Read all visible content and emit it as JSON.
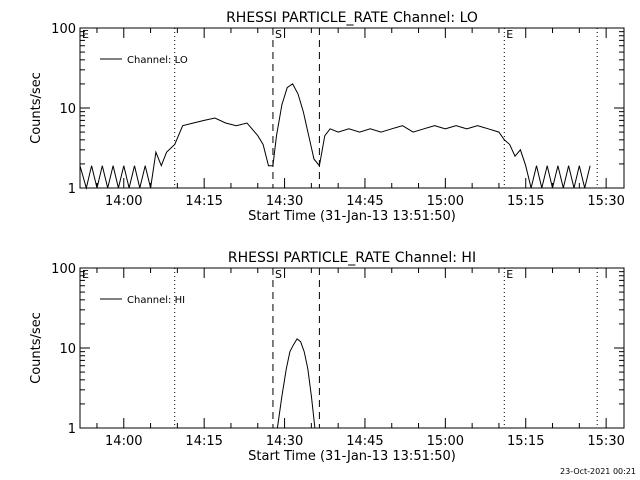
{
  "timestamp": "23-Oct-2021 00:21",
  "chart_data": [
    {
      "type": "line",
      "title": "RHESSI PARTICLE_RATE Channel: LO",
      "xlabel": "Start Time (31-Jan-13 13:51:50)",
      "ylabel": "Counts/sec",
      "y_scale": "log",
      "ylim": [
        1,
        100
      ],
      "y_ticks": [
        "1",
        "10",
        "100"
      ],
      "xlim": [
        "13:51:50",
        "15:33:20"
      ],
      "x_ticks": [
        "14:00",
        "14:15",
        "14:30",
        "14:45",
        "15:00",
        "15:15",
        "15:30"
      ],
      "legend": {
        "position": "top-left",
        "entries": [
          "Channel: LO"
        ]
      },
      "markers": [
        {
          "label": "E",
          "time": "13:51:50",
          "style": "dotted"
        },
        {
          "label": "",
          "time": "14:09:30",
          "style": "dotted"
        },
        {
          "label": "S",
          "time": "14:27:50",
          "style": "dashed"
        },
        {
          "label": "",
          "time": "14:36:30",
          "style": "dashed"
        },
        {
          "label": "E",
          "time": "15:11:00",
          "style": "dotted"
        },
        {
          "label": "",
          "time": "15:28:20",
          "style": "dotted"
        }
      ],
      "series": [
        {
          "name": "Channel: LO",
          "x": [
            "13:51:50",
            "13:53:00",
            "13:54:00",
            "13:55:00",
            "13:56:00",
            "13:57:00",
            "13:58:00",
            "13:59:00",
            "14:00:00",
            "14:01:00",
            "14:02:00",
            "14:03:00",
            "14:04:00",
            "14:05:00",
            "14:06:00",
            "14:07:00",
            "14:08:00",
            "14:09:30",
            "14:11:00",
            "14:13:00",
            "14:15:00",
            "14:17:00",
            "14:19:00",
            "14:21:00",
            "14:23:00",
            "14:25:00",
            "14:26:00",
            "14:27:00",
            "14:27:50",
            "14:28:30",
            "14:29:30",
            "14:30:30",
            "14:31:30",
            "14:32:30",
            "14:33:30",
            "14:34:30",
            "14:35:30",
            "14:36:30",
            "14:37:30",
            "14:38:30",
            "14:40:00",
            "14:42:00",
            "14:44:00",
            "14:46:00",
            "14:48:00",
            "14:50:00",
            "14:52:00",
            "14:54:00",
            "14:56:00",
            "14:58:00",
            "15:00:00",
            "15:02:00",
            "15:04:00",
            "15:06:00",
            "15:08:00",
            "15:10:00",
            "15:11:00",
            "15:12:00",
            "15:13:00",
            "15:14:00",
            "15:15:00",
            "15:16:00",
            "15:17:00",
            "15:18:00",
            "15:19:00",
            "15:20:00",
            "15:21:00",
            "15:22:00",
            "15:23:00",
            "15:24:00",
            "15:25:00",
            "15:26:00",
            "15:27:00"
          ],
          "values": [
            1.9,
            1.0,
            1.9,
            1.0,
            1.9,
            1.0,
            1.9,
            1.0,
            1.9,
            1.0,
            1.9,
            1.0,
            1.9,
            1.0,
            2.8,
            1.9,
            2.8,
            3.5,
            6.0,
            6.5,
            7.0,
            7.5,
            6.5,
            6.0,
            6.5,
            4.5,
            3.5,
            1.9,
            1.9,
            4.5,
            11,
            18,
            20,
            15,
            9,
            4.5,
            2.3,
            1.9,
            4.5,
            5.5,
            5.0,
            5.5,
            5.0,
            5.5,
            5.0,
            5.5,
            6.0,
            5.0,
            5.5,
            6.0,
            5.5,
            6.0,
            5.5,
            6.0,
            5.5,
            5.0,
            4.0,
            3.5,
            2.5,
            3.0,
            1.9,
            1.0,
            1.9,
            1.0,
            1.9,
            1.0,
            1.9,
            1.0,
            1.9,
            1.0,
            1.9,
            1.0,
            1.9
          ]
        }
      ]
    },
    {
      "type": "line",
      "title": "RHESSI PARTICLE_RATE Channel: HI",
      "xlabel": "Start Time (31-Jan-13 13:51:50)",
      "ylabel": "Counts/sec",
      "y_scale": "log",
      "ylim": [
        1,
        100
      ],
      "y_ticks": [
        "1",
        "10",
        "100"
      ],
      "xlim": [
        "13:51:50",
        "15:33:20"
      ],
      "x_ticks": [
        "14:00",
        "14:15",
        "14:30",
        "14:45",
        "15:00",
        "15:15",
        "15:30"
      ],
      "legend": {
        "position": "top-left",
        "entries": [
          "Channel: HI"
        ]
      },
      "markers": [
        {
          "label": "E",
          "time": "13:51:50",
          "style": "dotted"
        },
        {
          "label": "",
          "time": "14:09:30",
          "style": "dotted"
        },
        {
          "label": "S",
          "time": "14:27:50",
          "style": "dashed"
        },
        {
          "label": "",
          "time": "14:36:30",
          "style": "dashed"
        },
        {
          "label": "E",
          "time": "15:11:00",
          "style": "dotted"
        },
        {
          "label": "",
          "time": "15:28:20",
          "style": "dotted"
        }
      ],
      "series": [
        {
          "name": "Channel: HI",
          "x": [
            "14:28:40",
            "14:29:30",
            "14:30:20",
            "14:31:00",
            "14:31:40",
            "14:32:20",
            "14:33:00",
            "14:33:40",
            "14:34:20",
            "14:35:00",
            "14:35:40"
          ],
          "values": [
            1.0,
            2.5,
            5.5,
            9.0,
            11,
            13,
            12,
            9,
            5.5,
            2.5,
            1.0
          ]
        }
      ]
    }
  ]
}
